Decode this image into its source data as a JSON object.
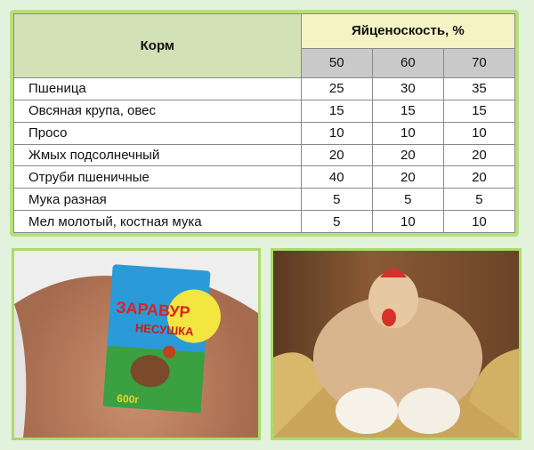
{
  "table": {
    "header_feed": "Корм",
    "header_yield": "Яйценоскость, %",
    "yield_levels": [
      "50",
      "60",
      "70"
    ],
    "rows": [
      {
        "name": "Пшеница",
        "values": [
          "25",
          "30",
          "35"
        ]
      },
      {
        "name": "Овсяная крупа, овес",
        "values": [
          "15",
          "15",
          "15"
        ]
      },
      {
        "name": "Просо",
        "values": [
          "10",
          "10",
          "10"
        ]
      },
      {
        "name": "Жмых подсолнечный",
        "values": [
          "20",
          "20",
          "20"
        ]
      },
      {
        "name": "Отруби пшеничные",
        "values": [
          "40",
          "20",
          "20"
        ]
      },
      {
        "name": "Мука разная",
        "values": [
          "5",
          "5",
          "5"
        ]
      },
      {
        "name": "Мел молотый, костная мука",
        "values": [
          "5",
          "10",
          "10"
        ]
      }
    ]
  },
  "photos": {
    "feed_bag": {
      "brand": "ЗАРАВУР",
      "product": "НЕСУШКА",
      "weight": "600г"
    },
    "hen": {}
  }
}
